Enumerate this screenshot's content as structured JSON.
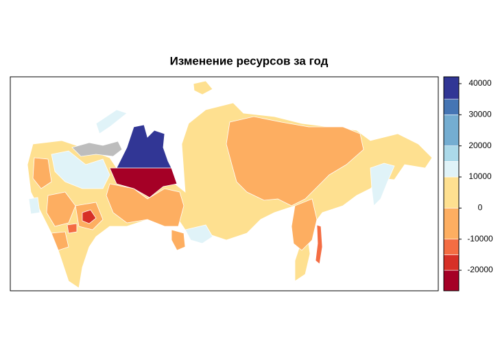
{
  "chart_data": {
    "type": "choropleth",
    "title": "Изменение ресурсов за год",
    "legend": {
      "breaks": [
        -26600,
        -20000,
        -15000,
        -10000,
        0,
        10000,
        15000,
        20000,
        30000,
        35000,
        42200
      ],
      "colors": [
        "#a50026",
        "#d73027",
        "#f46d43",
        "#fdae61",
        "#fee090",
        "#e0f3f8",
        "#abd9e9",
        "#74add1",
        "#4575b4",
        "#313695"
      ],
      "ticks": [
        -20000,
        -10000,
        0,
        10000,
        20000,
        30000,
        40000
      ]
    }
  }
}
